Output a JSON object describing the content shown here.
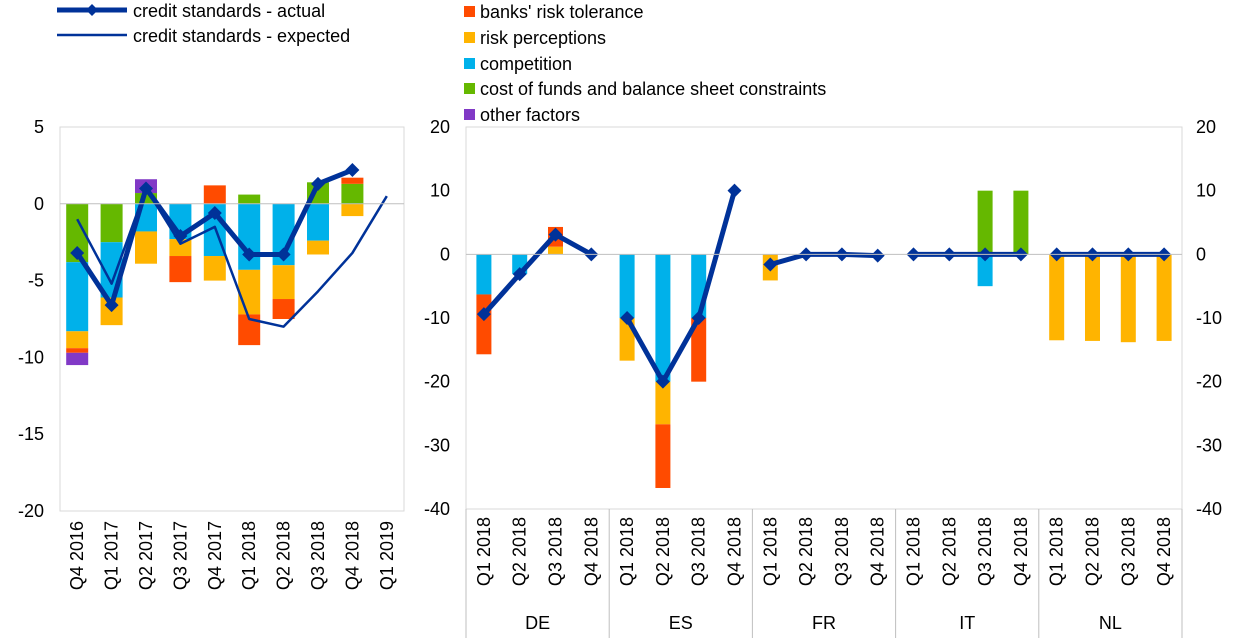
{
  "colors": {
    "actual_line": "#003299",
    "expected_line": "#003299",
    "banks_risk_tolerance": "#FF4B00",
    "risk_perceptions": "#FFB400",
    "competition": "#00B1EA",
    "cost_of_funds": "#65B800",
    "other_factors": "#8139C6",
    "axis": "#BFBFBF",
    "plot_border": "#D9D9D9"
  },
  "legend": {
    "actual": "credit standards - actual",
    "expected": "credit standards - expected",
    "banks_risk_tolerance": "banks' risk tolerance",
    "risk_perceptions": "risk perceptions",
    "competition": "competition",
    "cost_of_funds": "cost of funds and balance sheet constraints",
    "other_factors": "other factors"
  },
  "chart_data": [
    {
      "type": "bar",
      "stacked": true,
      "panel": "euro area",
      "categories": [
        "Q4 2016",
        "Q1 2017",
        "Q2 2017",
        "Q3 2017",
        "Q4 2017",
        "Q1 2018",
        "Q2 2018",
        "Q3 2018",
        "Q4 2018",
        "Q1 2019"
      ],
      "ylim": [
        -20,
        5
      ],
      "yticks": [
        5,
        0,
        -5,
        -10,
        -15,
        -20
      ],
      "series": [
        {
          "name": "cost of funds and balance sheet constraints",
          "key": "cost_of_funds",
          "values": [
            -3.8,
            -2.5,
            0.7,
            0,
            0,
            0.6,
            0,
            1.4,
            1.3,
            null
          ]
        },
        {
          "name": "competition",
          "key": "competition",
          "values": [
            -4.5,
            -3.6,
            -1.8,
            -2.3,
            -3.4,
            -4.3,
            -4.0,
            -2.4,
            0,
            null
          ]
        },
        {
          "name": "risk perceptions",
          "key": "risk_perceptions",
          "values": [
            -1.1,
            -1.8,
            -2.1,
            -1.1,
            -1.6,
            -2.9,
            -2.2,
            -0.9,
            -0.8,
            null
          ]
        },
        {
          "name": "banks' risk tolerance",
          "key": "banks_risk_tolerance",
          "values": [
            -0.3,
            0,
            0,
            -1.7,
            1.2,
            -2.0,
            -1.3,
            0,
            0.4,
            null
          ]
        },
        {
          "name": "other factors",
          "key": "other_factors",
          "values": [
            -0.8,
            0,
            0.9,
            0,
            0,
            0,
            0,
            0,
            0,
            null
          ]
        }
      ],
      "lines": [
        {
          "name": "credit standards - actual",
          "key": "actual",
          "values": [
            -3.2,
            -6.6,
            1.0,
            -2.1,
            -0.6,
            -3.3,
            -3.3,
            1.3,
            2.2,
            null
          ]
        },
        {
          "name": "credit standards - expected",
          "key": "expected",
          "values": [
            -1.0,
            -5.2,
            1.0,
            -2.6,
            -1.5,
            -7.5,
            -8.0,
            -5.7,
            -3.2,
            0.5
          ]
        }
      ]
    },
    {
      "type": "bar",
      "stacked": true,
      "panel": "countries",
      "groups": [
        "DE",
        "ES",
        "FR",
        "IT",
        "NL"
      ],
      "categories": [
        "Q1 2018",
        "Q2 2018",
        "Q3 2018",
        "Q4 2018"
      ],
      "ylim": [
        -40,
        20
      ],
      "yticks": [
        20,
        10,
        0,
        -10,
        -20,
        -30,
        -40
      ],
      "series": [
        {
          "name": "cost of funds and balance sheet constraints",
          "key": "cost_of_funds",
          "values": {
            "DE": [
              0,
              0,
              0,
              0
            ],
            "ES": [
              0,
              0,
              0,
              0
            ],
            "FR": [
              0,
              0,
              0,
              0
            ],
            "IT": [
              0,
              0,
              10,
              10
            ],
            "NL": [
              0,
              0,
              0,
              0
            ]
          }
        },
        {
          "name": "competition",
          "key": "competition",
          "values": {
            "DE": [
              -6.3,
              -3.1,
              0,
              0
            ],
            "ES": [
              -10,
              -20,
              -10,
              0
            ],
            "FR": [
              0,
              0,
              0,
              0
            ],
            "IT": [
              0,
              0,
              -5,
              0
            ],
            "NL": [
              0,
              0,
              0,
              0
            ]
          }
        },
        {
          "name": "risk perceptions",
          "key": "risk_perceptions",
          "values": {
            "DE": [
              0,
              0,
              1.2,
              0
            ],
            "ES": [
              -6.7,
              -6.7,
              0,
              0
            ],
            "FR": [
              -4.1,
              0,
              0,
              0
            ],
            "IT": [
              0,
              0,
              0,
              0
            ],
            "NL": [
              -13.5,
              -13.6,
              -13.8,
              -13.6
            ]
          }
        },
        {
          "name": "banks' risk tolerance",
          "key": "banks_risk_tolerance",
          "values": {
            "DE": [
              -9.4,
              0,
              3.1,
              0
            ],
            "ES": [
              0,
              -10,
              -10,
              0
            ],
            "FR": [
              0,
              0,
              0,
              0
            ],
            "IT": [
              0,
              0,
              0,
              0
            ],
            "NL": [
              0,
              0,
              0,
              0
            ]
          }
        },
        {
          "name": "other factors",
          "key": "other_factors",
          "values": {
            "DE": [
              0,
              0,
              0,
              0
            ],
            "ES": [
              0,
              0,
              0,
              0
            ],
            "FR": [
              0,
              0,
              0,
              0
            ],
            "IT": [
              0,
              0,
              0,
              0
            ],
            "NL": [
              0,
              0,
              0,
              0
            ]
          }
        }
      ],
      "lines": [
        {
          "name": "credit standards - actual",
          "key": "actual",
          "values": {
            "DE": [
              -9.4,
              -3.1,
              3.1,
              0
            ],
            "ES": [
              -10,
              -20,
              -10,
              10
            ],
            "FR": [
              -1.6,
              0,
              0,
              -0.2
            ],
            "IT": [
              0,
              0,
              0,
              0
            ],
            "NL": [
              0,
              0,
              0,
              0
            ]
          }
        }
      ]
    }
  ]
}
